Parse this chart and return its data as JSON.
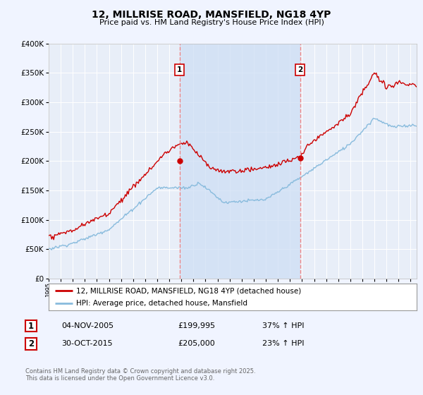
{
  "title": "12, MILLRISE ROAD, MANSFIELD, NG18 4YP",
  "subtitle": "Price paid vs. HM Land Registry's House Price Index (HPI)",
  "red_label": "12, MILLRISE ROAD, MANSFIELD, NG18 4YP (detached house)",
  "blue_label": "HPI: Average price, detached house, Mansfield",
  "annotation1": {
    "label": "1",
    "date": "04-NOV-2005",
    "price": "£199,995",
    "pct": "37% ↑ HPI"
  },
  "annotation2": {
    "label": "2",
    "date": "30-OCT-2015",
    "price": "£205,000",
    "pct": "23% ↑ HPI"
  },
  "footer": "Contains HM Land Registry data © Crown copyright and database right 2025.\nThis data is licensed under the Open Government Licence v3.0.",
  "bg_color": "#f0f4ff",
  "plot_bg": "#e8eef8",
  "shade_color": "#ccddf5",
  "ylim": [
    0,
    400000
  ],
  "xlim_start": 1995.0,
  "xlim_end": 2025.5,
  "vline1_x": 2005.85,
  "vline2_x": 2015.83,
  "sale1_x": 2005.85,
  "sale1_y": 199995,
  "sale2_x": 2015.83,
  "sale2_y": 205000,
  "vline_color": "#ee8888",
  "red_color": "#cc0000",
  "blue_color": "#88bbdd"
}
